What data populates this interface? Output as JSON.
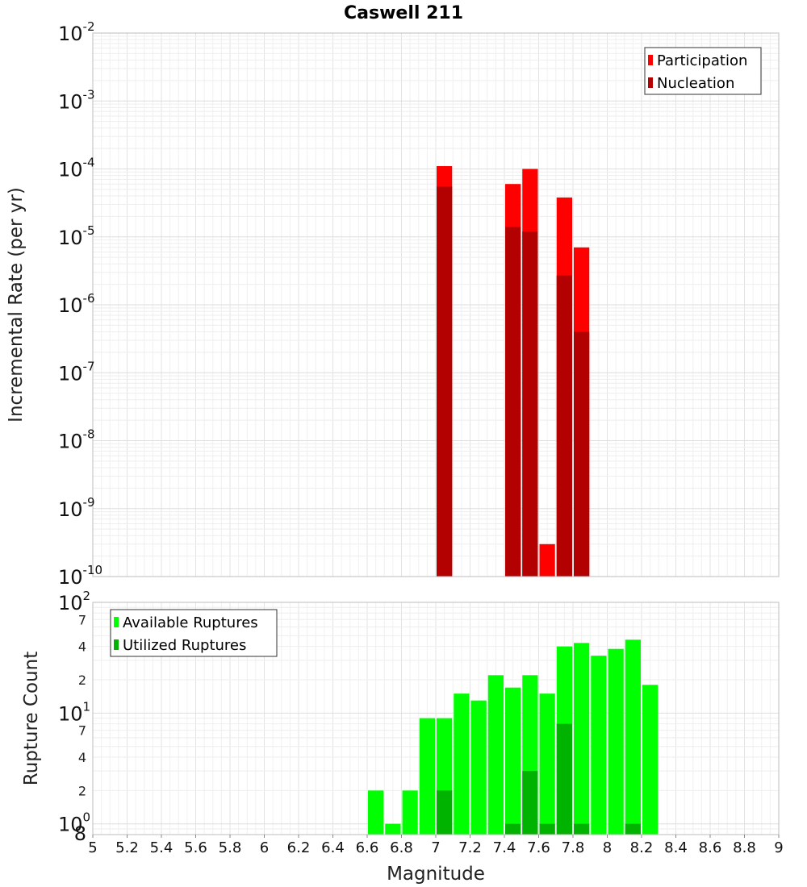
{
  "chart_data": [
    {
      "type": "bar",
      "panel": "top",
      "title": "Caswell 211",
      "xlabel": "Magnitude",
      "ylabel": "Incremental Rate (per yr)",
      "yscale": "log",
      "ylim": [
        1e-10,
        0.01
      ],
      "xlim": [
        5,
        9
      ],
      "bar_width": 0.1,
      "legend_position": "top-right",
      "series": [
        {
          "name": "Participation",
          "color": "#ff0000",
          "x": [
            7.05,
            7.45,
            7.55,
            7.65,
            7.75,
            7.85
          ],
          "values": [
            0.00011,
            6e-05,
            0.0001,
            3e-10,
            3.8e-05,
            7e-06
          ]
        },
        {
          "name": "Nucleation",
          "color": "#b30000",
          "x": [
            7.05,
            7.45,
            7.55,
            7.75,
            7.85
          ],
          "values": [
            5.5e-05,
            1.4e-05,
            1.2e-05,
            2.7e-06,
            4e-07
          ]
        }
      ]
    },
    {
      "type": "bar",
      "panel": "bottom",
      "xlabel": "Magnitude",
      "ylabel": "Rupture Count",
      "yscale": "log",
      "ylim": [
        0.8,
        100
      ],
      "xlim": [
        5,
        9
      ],
      "bar_width": 0.1,
      "legend_position": "top-left",
      "series": [
        {
          "name": "Available Ruptures",
          "color": "#00ff00",
          "x": [
            6.65,
            6.75,
            6.85,
            6.95,
            7.05,
            7.15,
            7.25,
            7.35,
            7.45,
            7.55,
            7.65,
            7.75,
            7.85,
            7.95,
            8.05,
            8.15,
            8.25
          ],
          "values": [
            2,
            1,
            2,
            9,
            9,
            15,
            13,
            22,
            17,
            22,
            15,
            40,
            43,
            33,
            38,
            46,
            18
          ]
        },
        {
          "name": "Utilized Ruptures",
          "color": "#00b300",
          "x": [
            7.05,
            7.45,
            7.55,
            7.65,
            7.75,
            7.85,
            8.15
          ],
          "values": [
            2,
            1,
            3,
            1,
            8,
            1,
            1
          ]
        }
      ]
    }
  ],
  "axes_text": {
    "top_y_decades": [
      {
        "base": "10",
        "exp": "-2"
      },
      {
        "base": "10",
        "exp": "-3"
      },
      {
        "base": "10",
        "exp": "-4"
      },
      {
        "base": "10",
        "exp": "-5"
      },
      {
        "base": "10",
        "exp": "-6"
      },
      {
        "base": "10",
        "exp": "-7"
      },
      {
        "base": "10",
        "exp": "-8"
      },
      {
        "base": "10",
        "exp": "-9"
      },
      {
        "base": "10",
        "exp": "-10"
      }
    ],
    "bottom_y_decades": [
      {
        "base": "10",
        "exp": "2"
      },
      {
        "base": "10",
        "exp": "1"
      },
      {
        "base": "10",
        "exp": "0"
      }
    ],
    "bottom_y_minor_labels": [
      "7",
      "4",
      "2",
      "7",
      "4",
      "2",
      "8"
    ],
    "x_tick_labels": [
      "5",
      "5.2",
      "5.4",
      "5.6",
      "5.8",
      "6",
      "6.2",
      "6.4",
      "6.6",
      "6.8",
      "7",
      "7.2",
      "7.4",
      "7.6",
      "7.8",
      "8",
      "8.2",
      "8.4",
      "8.6",
      "8.8",
      "9"
    ]
  }
}
